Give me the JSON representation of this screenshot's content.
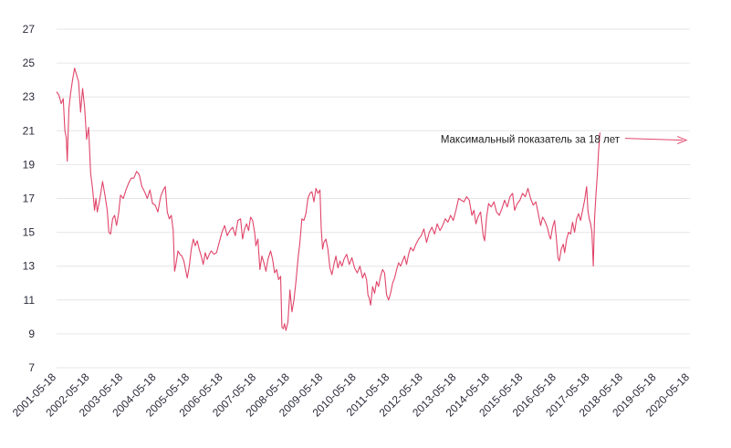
{
  "chart_data": {
    "type": "line",
    "title": "",
    "xlabel": "",
    "ylabel": "",
    "ylim": [
      7,
      27
    ],
    "y_ticks": [
      7,
      9,
      11,
      13,
      15,
      17,
      19,
      21,
      23,
      25,
      27
    ],
    "x_tick_labels": [
      "2001-05-18",
      "2002-05-18",
      "2003-05-18",
      "2004-05-18",
      "2005-05-18",
      "2006-05-18",
      "2007-05-18",
      "2008-05-18",
      "2009-05-18",
      "2010-05-18",
      "2011-05-18",
      "2012-05-18",
      "2013-05-18",
      "2014-05-18",
      "2015-05-18",
      "2016-05-18",
      "2017-05-18",
      "2018-05-18",
      "2019-05-18",
      "2020-05-18"
    ],
    "x_start_year": 2001.38,
    "grid": true,
    "legend": "none",
    "line_color": "#e0456a",
    "annotation": {
      "text": "Максимальный показатель за 18 лет",
      "x": 2020.33,
      "y": 20.5
    },
    "series": [
      {
        "values": [
          [
            2001.38,
            23.3
          ],
          [
            2001.45,
            23.1
          ],
          [
            2001.52,
            22.6
          ],
          [
            2001.58,
            22.9
          ],
          [
            2001.63,
            21.0
          ],
          [
            2001.67,
            20.6
          ],
          [
            2001.7,
            19.2
          ],
          [
            2001.75,
            22.3
          ],
          [
            2001.8,
            23.2
          ],
          [
            2001.86,
            24.0
          ],
          [
            2001.92,
            24.7
          ],
          [
            2001.98,
            24.3
          ],
          [
            2002.04,
            23.9
          ],
          [
            2002.1,
            22.1
          ],
          [
            2002.16,
            23.5
          ],
          [
            2002.22,
            22.4
          ],
          [
            2002.28,
            20.5
          ],
          [
            2002.34,
            21.2
          ],
          [
            2002.4,
            18.5
          ],
          [
            2002.46,
            17.6
          ],
          [
            2002.52,
            16.3
          ],
          [
            2002.56,
            17.0
          ],
          [
            2002.6,
            16.2
          ],
          [
            2002.68,
            17.0
          ],
          [
            2002.76,
            18.0
          ],
          [
            2002.84,
            17.1
          ],
          [
            2002.9,
            16.3
          ],
          [
            2002.95,
            15.0
          ],
          [
            2003.0,
            14.9
          ],
          [
            2003.06,
            15.8
          ],
          [
            2003.12,
            16.0
          ],
          [
            2003.18,
            15.4
          ],
          [
            2003.24,
            16.1
          ],
          [
            2003.3,
            17.2
          ],
          [
            2003.38,
            17.0
          ],
          [
            2003.46,
            17.5
          ],
          [
            2003.54,
            17.9
          ],
          [
            2003.62,
            18.2
          ],
          [
            2003.7,
            18.2
          ],
          [
            2003.78,
            18.6
          ],
          [
            2003.86,
            18.4
          ],
          [
            2003.94,
            17.7
          ],
          [
            2004.02,
            17.4
          ],
          [
            2004.1,
            17.0
          ],
          [
            2004.18,
            17.5
          ],
          [
            2004.26,
            16.7
          ],
          [
            2004.34,
            16.6
          ],
          [
            2004.42,
            16.2
          ],
          [
            2004.5,
            17.1
          ],
          [
            2004.58,
            17.5
          ],
          [
            2004.64,
            17.7
          ],
          [
            2004.7,
            16.2
          ],
          [
            2004.76,
            15.8
          ],
          [
            2004.82,
            16.0
          ],
          [
            2004.88,
            15.1
          ],
          [
            2004.92,
            12.7
          ],
          [
            2004.96,
            13.1
          ],
          [
            2005.02,
            13.9
          ],
          [
            2005.08,
            13.7
          ],
          [
            2005.14,
            13.6
          ],
          [
            2005.2,
            13.3
          ],
          [
            2005.26,
            12.7
          ],
          [
            2005.3,
            12.3
          ],
          [
            2005.36,
            13.0
          ],
          [
            2005.42,
            14.0
          ],
          [
            2005.48,
            14.6
          ],
          [
            2005.54,
            14.2
          ],
          [
            2005.6,
            14.5
          ],
          [
            2005.66,
            14.0
          ],
          [
            2005.72,
            13.6
          ],
          [
            2005.78,
            13.1
          ],
          [
            2005.84,
            13.8
          ],
          [
            2005.9,
            13.4
          ],
          [
            2005.96,
            13.7
          ],
          [
            2006.02,
            13.9
          ],
          [
            2006.1,
            13.7
          ],
          [
            2006.18,
            13.8
          ],
          [
            2006.26,
            14.4
          ],
          [
            2006.34,
            15.0
          ],
          [
            2006.42,
            15.4
          ],
          [
            2006.5,
            14.8
          ],
          [
            2006.58,
            15.1
          ],
          [
            2006.66,
            15.3
          ],
          [
            2006.74,
            14.8
          ],
          [
            2006.82,
            15.7
          ],
          [
            2006.9,
            15.8
          ],
          [
            2006.96,
            14.6
          ],
          [
            2007.02,
            15.2
          ],
          [
            2007.08,
            15.5
          ],
          [
            2007.14,
            15.1
          ],
          [
            2007.2,
            15.9
          ],
          [
            2007.26,
            15.7
          ],
          [
            2007.32,
            15.0
          ],
          [
            2007.36,
            14.2
          ],
          [
            2007.42,
            14.6
          ],
          [
            2007.48,
            12.8
          ],
          [
            2007.54,
            13.6
          ],
          [
            2007.6,
            13.2
          ],
          [
            2007.66,
            12.7
          ],
          [
            2007.72,
            13.4
          ],
          [
            2007.8,
            13.9
          ],
          [
            2007.86,
            13.4
          ],
          [
            2007.92,
            12.6
          ],
          [
            2007.98,
            12.8
          ],
          [
            2008.04,
            12.2
          ],
          [
            2008.1,
            12.4
          ],
          [
            2008.14,
            9.4
          ],
          [
            2008.18,
            9.3
          ],
          [
            2008.22,
            9.6
          ],
          [
            2008.26,
            9.2
          ],
          [
            2008.32,
            9.7
          ],
          [
            2008.38,
            11.6
          ],
          [
            2008.44,
            10.3
          ],
          [
            2008.5,
            11.0
          ],
          [
            2008.56,
            12.1
          ],
          [
            2008.62,
            13.4
          ],
          [
            2008.68,
            14.4
          ],
          [
            2008.74,
            15.8
          ],
          [
            2008.8,
            15.7
          ],
          [
            2008.86,
            16.1
          ],
          [
            2008.92,
            17.0
          ],
          [
            2008.98,
            17.3
          ],
          [
            2009.04,
            17.4
          ],
          [
            2009.1,
            16.8
          ],
          [
            2009.16,
            17.6
          ],
          [
            2009.22,
            17.3
          ],
          [
            2009.28,
            17.5
          ],
          [
            2009.32,
            15.2
          ],
          [
            2009.36,
            14.0
          ],
          [
            2009.4,
            14.4
          ],
          [
            2009.46,
            14.6
          ],
          [
            2009.52,
            14.0
          ],
          [
            2009.58,
            12.9
          ],
          [
            2009.64,
            12.5
          ],
          [
            2009.7,
            13.1
          ],
          [
            2009.76,
            13.6
          ],
          [
            2009.82,
            12.9
          ],
          [
            2009.88,
            13.3
          ],
          [
            2009.94,
            13.0
          ],
          [
            2010.0,
            13.4
          ],
          [
            2010.08,
            13.7
          ],
          [
            2010.16,
            13.1
          ],
          [
            2010.24,
            13.5
          ],
          [
            2010.32,
            12.9
          ],
          [
            2010.4,
            12.6
          ],
          [
            2010.48,
            13.0
          ],
          [
            2010.56,
            12.3
          ],
          [
            2010.62,
            12.6
          ],
          [
            2010.68,
            12.2
          ],
          [
            2010.72,
            11.3
          ],
          [
            2010.76,
            11.1
          ],
          [
            2010.8,
            10.7
          ],
          [
            2010.86,
            11.8
          ],
          [
            2010.92,
            11.4
          ],
          [
            2010.98,
            12.1
          ],
          [
            2011.04,
            11.8
          ],
          [
            2011.1,
            12.4
          ],
          [
            2011.16,
            12.8
          ],
          [
            2011.22,
            12.6
          ],
          [
            2011.28,
            11.3
          ],
          [
            2011.34,
            11.0
          ],
          [
            2011.4,
            11.4
          ],
          [
            2011.46,
            12.0
          ],
          [
            2011.52,
            12.3
          ],
          [
            2011.58,
            12.8
          ],
          [
            2011.64,
            13.2
          ],
          [
            2011.7,
            13.0
          ],
          [
            2011.76,
            13.3
          ],
          [
            2011.82,
            13.6
          ],
          [
            2011.88,
            13.1
          ],
          [
            2011.94,
            13.7
          ],
          [
            2012.0,
            14.1
          ],
          [
            2012.08,
            13.9
          ],
          [
            2012.16,
            14.3
          ],
          [
            2012.24,
            14.6
          ],
          [
            2012.32,
            14.8
          ],
          [
            2012.4,
            15.2
          ],
          [
            2012.48,
            14.4
          ],
          [
            2012.56,
            15.0
          ],
          [
            2012.64,
            15.3
          ],
          [
            2012.72,
            14.9
          ],
          [
            2012.8,
            15.5
          ],
          [
            2012.88,
            15.1
          ],
          [
            2012.96,
            15.4
          ],
          [
            2013.04,
            15.8
          ],
          [
            2013.12,
            15.6
          ],
          [
            2013.2,
            16.0
          ],
          [
            2013.28,
            15.7
          ],
          [
            2013.36,
            16.3
          ],
          [
            2013.44,
            17.0
          ],
          [
            2013.52,
            16.9
          ],
          [
            2013.6,
            16.8
          ],
          [
            2013.68,
            17.1
          ],
          [
            2013.76,
            16.9
          ],
          [
            2013.84,
            16.0
          ],
          [
            2013.9,
            16.3
          ],
          [
            2013.96,
            15.5
          ],
          [
            2014.02,
            15.9
          ],
          [
            2014.1,
            16.2
          ],
          [
            2014.18,
            14.8
          ],
          [
            2014.22,
            14.5
          ],
          [
            2014.28,
            15.9
          ],
          [
            2014.34,
            16.7
          ],
          [
            2014.42,
            16.5
          ],
          [
            2014.5,
            16.8
          ],
          [
            2014.58,
            16.2
          ],
          [
            2014.66,
            16.0
          ],
          [
            2014.74,
            16.4
          ],
          [
            2014.82,
            16.9
          ],
          [
            2014.9,
            16.5
          ],
          [
            2014.98,
            17.1
          ],
          [
            2015.06,
            17.3
          ],
          [
            2015.12,
            16.3
          ],
          [
            2015.2,
            16.7
          ],
          [
            2015.28,
            16.9
          ],
          [
            2015.36,
            17.3
          ],
          [
            2015.44,
            17.1
          ],
          [
            2015.52,
            17.6
          ],
          [
            2015.6,
            17.0
          ],
          [
            2015.68,
            16.6
          ],
          [
            2015.76,
            16.8
          ],
          [
            2015.84,
            16.0
          ],
          [
            2015.9,
            15.4
          ],
          [
            2015.96,
            15.9
          ],
          [
            2016.02,
            15.7
          ],
          [
            2016.1,
            15.3
          ],
          [
            2016.16,
            14.8
          ],
          [
            2016.2,
            14.6
          ],
          [
            2016.26,
            15.3
          ],
          [
            2016.32,
            15.7
          ],
          [
            2016.38,
            14.5
          ],
          [
            2016.42,
            13.5
          ],
          [
            2016.46,
            13.3
          ],
          [
            2016.52,
            14.0
          ],
          [
            2016.58,
            14.3
          ],
          [
            2016.62,
            13.8
          ],
          [
            2016.68,
            14.6
          ],
          [
            2016.74,
            15.0
          ],
          [
            2016.8,
            14.9
          ],
          [
            2016.86,
            15.6
          ],
          [
            2016.92,
            15.0
          ],
          [
            2016.98,
            15.8
          ],
          [
            2017.04,
            16.1
          ],
          [
            2017.1,
            15.7
          ],
          [
            2017.16,
            16.3
          ],
          [
            2017.22,
            16.9
          ],
          [
            2017.28,
            17.7
          ],
          [
            2017.32,
            16.3
          ],
          [
            2017.36,
            15.8
          ],
          [
            2017.4,
            15.5
          ],
          [
            2017.44,
            15.0
          ],
          [
            2017.48,
            13.0
          ],
          [
            2017.52,
            15.8
          ],
          [
            2017.56,
            17.2
          ],
          [
            2017.6,
            18.4
          ],
          [
            2017.64,
            19.8
          ],
          [
            2017.68,
            20.9
          ]
        ]
      }
    ]
  }
}
